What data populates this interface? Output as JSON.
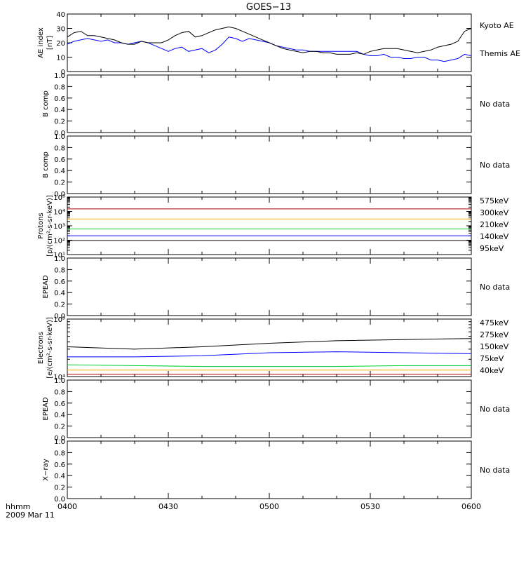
{
  "title": "GOES−13",
  "time_axis": {
    "ticks": [
      "0400",
      "0430",
      "0500",
      "0530",
      "0600"
    ],
    "corner_label_1": "hhmm",
    "corner_label_2": "2009 Mar 11"
  },
  "colors": {
    "black": "#000000",
    "blue": "#0000ff",
    "green": "#00cc33",
    "orange": "#ffaa00",
    "darkred": "#aa0000"
  },
  "chart_data": [
    {
      "type": "line",
      "panel": "ae",
      "ylabel_1": "AE index",
      "ylabel_2": "[nT]",
      "ylim": [
        0,
        40
      ],
      "ytick_labels": [
        "0",
        "10",
        "20",
        "30",
        "40"
      ],
      "series": [
        {
          "name": "Kyoto AE",
          "color": "#0000ff",
          "x": [
            0,
            2,
            4,
            6,
            8,
            10,
            12,
            14,
            16,
            18,
            20,
            22,
            24,
            26,
            28,
            30,
            32,
            34,
            36,
            38,
            40,
            42,
            44,
            46,
            48,
            50,
            52,
            54,
            56,
            58,
            60,
            62,
            64,
            66,
            68,
            70,
            72,
            74,
            76,
            78,
            80,
            82,
            84,
            86,
            88,
            90,
            92,
            94,
            96,
            98,
            100,
            102,
            104,
            106,
            108,
            110,
            112,
            114,
            116,
            118,
            120
          ],
          "values": [
            19,
            21,
            22,
            23,
            22,
            21,
            22,
            20,
            20,
            19,
            20,
            21,
            20,
            18,
            16,
            14,
            16,
            17,
            14,
            15,
            16,
            13,
            15,
            19,
            24,
            23,
            21,
            23,
            22,
            21,
            20,
            18,
            17,
            16,
            15,
            15,
            14,
            14,
            14,
            14,
            14,
            14,
            14,
            14,
            12,
            11,
            11,
            12,
            10,
            10,
            9,
            9,
            10,
            10,
            8,
            8,
            7,
            8,
            9,
            12,
            11
          ]
        },
        {
          "name": "Themis AE",
          "color": "#000000",
          "x": [
            0,
            2,
            4,
            6,
            8,
            10,
            12,
            14,
            16,
            18,
            20,
            22,
            24,
            26,
            28,
            30,
            32,
            34,
            36,
            38,
            40,
            42,
            44,
            46,
            48,
            50,
            52,
            54,
            56,
            58,
            60,
            62,
            64,
            66,
            68,
            70,
            72,
            74,
            76,
            78,
            80,
            82,
            84,
            86,
            88,
            90,
            92,
            94,
            96,
            98,
            100,
            102,
            104,
            106,
            108,
            110,
            112,
            114,
            116,
            118,
            120
          ],
          "values": [
            24,
            27,
            28,
            25,
            25,
            24,
            23,
            22,
            20,
            19,
            19,
            21,
            20,
            20,
            20,
            22,
            25,
            27,
            28,
            24,
            25,
            27,
            29,
            30,
            31,
            30,
            28,
            26,
            24,
            22,
            20,
            18,
            16,
            15,
            14,
            13,
            14,
            14,
            13,
            13,
            12,
            12,
            12,
            13,
            12,
            14,
            15,
            16,
            16,
            16,
            15,
            14,
            13,
            14,
            15,
            17,
            18,
            19,
            21,
            28,
            30
          ]
        }
      ]
    },
    {
      "type": "line",
      "panel": "bcomp1",
      "ylabel_1": "B comp",
      "ylim": [
        0,
        1
      ],
      "ytick_labels": [
        "0.0",
        "0.2",
        "0.4",
        "0.6",
        "0.8",
        "1.0"
      ],
      "no_data_label": "No data",
      "series": []
    },
    {
      "type": "line",
      "panel": "bcomp2",
      "ylabel_1": "B comp",
      "ylim": [
        0,
        1
      ],
      "ytick_labels": [
        "0.0",
        "0.2",
        "0.4",
        "0.6",
        "0.8",
        "1.0"
      ],
      "no_data_label": "No data",
      "series": []
    },
    {
      "type": "line",
      "panel": "protons",
      "log_scale": true,
      "ylabel_1": "Protons",
      "ylabel_2": "[p/(cm²-s-sr-keV)]",
      "ylim": [
        10,
        100000
      ],
      "ytick_labels": [
        "10¹",
        "10²",
        "10³",
        "10⁴",
        "10⁵"
      ],
      "series": [
        {
          "name": "575keV",
          "color": "#aa0000",
          "x": [
            0,
            30,
            60,
            90,
            120
          ],
          "values": [
            15000,
            15000,
            15000,
            15000,
            15000
          ]
        },
        {
          "name": "300keV",
          "color": "#ffaa00",
          "x": [
            0,
            30,
            60,
            90,
            120
          ],
          "values": [
            3000,
            3000,
            3000,
            3000,
            3000
          ]
        },
        {
          "name": "210keV",
          "color": "#00cc33",
          "x": [
            0,
            30,
            60,
            90,
            120
          ],
          "values": [
            600,
            600,
            600,
            600,
            600
          ]
        },
        {
          "name": "140keV",
          "color": "#0000ff",
          "x": [
            0,
            30,
            60,
            90,
            120
          ],
          "values": [
            200,
            200,
            200,
            200,
            200
          ]
        },
        {
          "name": "95keV",
          "color": "#000000",
          "x": [
            0,
            30,
            60,
            90,
            120
          ],
          "values": [
            95,
            95,
            95,
            95,
            95
          ]
        }
      ]
    },
    {
      "type": "line",
      "panel": "epead1",
      "ylabel_1": "EPEAD",
      "ylim": [
        0,
        1
      ],
      "ytick_labels": [
        "0.0",
        "0.2",
        "0.4",
        "0.6",
        "0.8",
        "1.0"
      ],
      "no_data_label": "No data",
      "series": []
    },
    {
      "type": "line",
      "panel": "electrons",
      "log_scale": true,
      "ylabel_1": "Electrons",
      "ylabel_2": "[e/(cm²-s-sr-keV)]",
      "ylim": [
        10000,
        100000
      ],
      "ytick_labels": [
        "10⁴",
        "10⁵"
      ],
      "series": [
        {
          "name": "475keV",
          "color": "#aa0000",
          "x": [
            0,
            20,
            40,
            60,
            80,
            100,
            120
          ],
          "values": [
            11000,
            11000,
            11000,
            11000,
            11000,
            11000,
            11000
          ]
        },
        {
          "name": "275keV",
          "color": "#ffaa00",
          "x": [
            0,
            20,
            40,
            60,
            80,
            100,
            120
          ],
          "values": [
            13000,
            13000,
            13000,
            13000,
            13000,
            13000,
            13000
          ]
        },
        {
          "name": "150keV",
          "color": "#00cc33",
          "x": [
            0,
            20,
            40,
            60,
            80,
            100,
            120
          ],
          "values": [
            16000,
            15500,
            15000,
            15000,
            15000,
            15500,
            15500
          ]
        },
        {
          "name": "75keV",
          "color": "#0000ff",
          "x": [
            0,
            20,
            40,
            60,
            80,
            100,
            120
          ],
          "values": [
            22000,
            22000,
            23000,
            26000,
            27000,
            26000,
            25000
          ]
        },
        {
          "name": "40keV",
          "color": "#000000",
          "x": [
            0,
            20,
            40,
            60,
            80,
            100,
            120
          ],
          "values": [
            33000,
            30000,
            33000,
            38000,
            42000,
            44000,
            46000
          ]
        }
      ]
    },
    {
      "type": "line",
      "panel": "epead2",
      "ylabel_1": "EPEAD",
      "ylim": [
        0,
        1
      ],
      "ytick_labels": [
        "0.0",
        "0.2",
        "0.4",
        "0.6",
        "0.8",
        "1.0"
      ],
      "no_data_label": "No data",
      "series": []
    },
    {
      "type": "line",
      "panel": "xray",
      "ylabel_1": "X−ray",
      "ylim": [
        0,
        1
      ],
      "ytick_labels": [
        "0.0",
        "0.2",
        "0.4",
        "0.6",
        "0.8",
        "1.0"
      ],
      "no_data_label": "No data",
      "series": []
    }
  ]
}
